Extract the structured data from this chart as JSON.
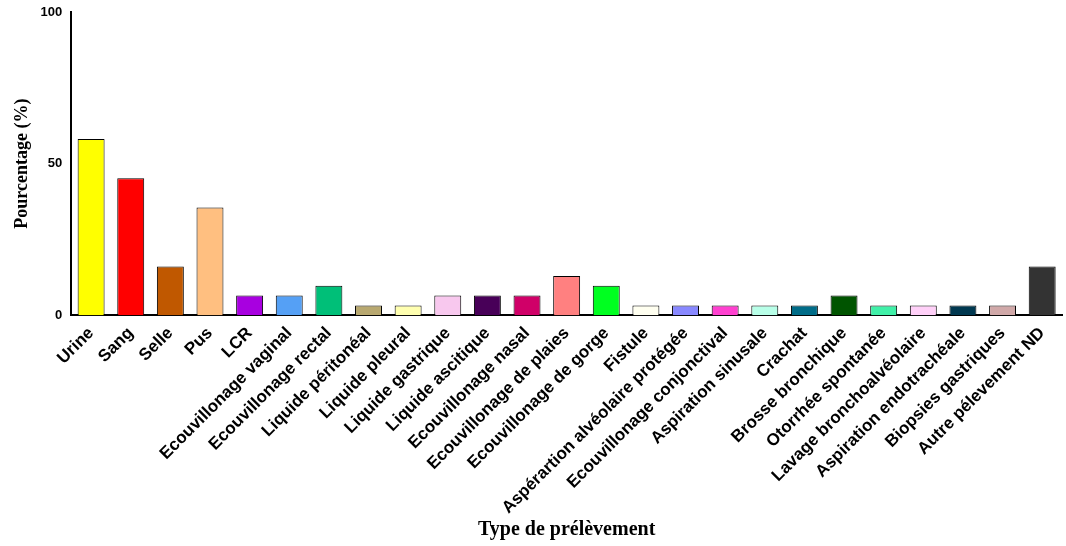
{
  "chart_data": {
    "type": "bar",
    "xlabel": "Type de prélèvement",
    "ylabel": "Pourcentage (%)",
    "categories": [
      "Urine",
      "Sang",
      "Selle",
      "Pus",
      "LCR",
      "Ecouvillonage vaginal",
      "Ecouvillonage rectal",
      "Liquide péritonéal",
      "Liquide pleural",
      "Liquide gastrique",
      "Liquide ascitique",
      "Ecouvillonage nasal",
      "Ecouvillonage de plaies",
      "Ecouvillonage de gorge",
      "Fistule",
      "Aspérartion alvéolaire protégée",
      "Ecouvillonage conjonctival",
      "Aspiration sinusale",
      "Crachat",
      "Brosse bronchique",
      "Otorrhée spontanée",
      "Lavage bronchoalvéolaire",
      "Aspiration endotrachéale",
      "Biopsies gastriques",
      "Autre pélevement ND"
    ],
    "values": [
      58.1,
      45.2,
      16.1,
      35.5,
      6.5,
      6.5,
      9.7,
      3.2,
      3.2,
      6.5,
      6.5,
      6.5,
      12.9,
      9.7,
      3.2,
      3.2,
      3.2,
      3.2,
      3.2,
      6.5,
      3.2,
      3.2,
      3.2,
      3.2,
      16.1
    ],
    "colors": [
      "#ffff00",
      "#ff0000",
      "#c05800",
      "#ffbf80",
      "#a800e0",
      "#55a0f5",
      "#00bf78",
      "#b8a870",
      "#ffffb0",
      "#f8c8ee",
      "#480058",
      "#d00068",
      "#ff8080",
      "#00ff20",
      "#fffff0",
      "#8888ff",
      "#ff40d0",
      "#b8ffe8",
      "#006c88",
      "#005400",
      "#40f0a8",
      "#ffd0f8",
      "#003850",
      "#d0a8a8",
      "#333333"
    ],
    "ylim": [
      0,
      100
    ],
    "yticks": [
      0,
      50,
      100
    ],
    "grid": false,
    "legend": false
  }
}
